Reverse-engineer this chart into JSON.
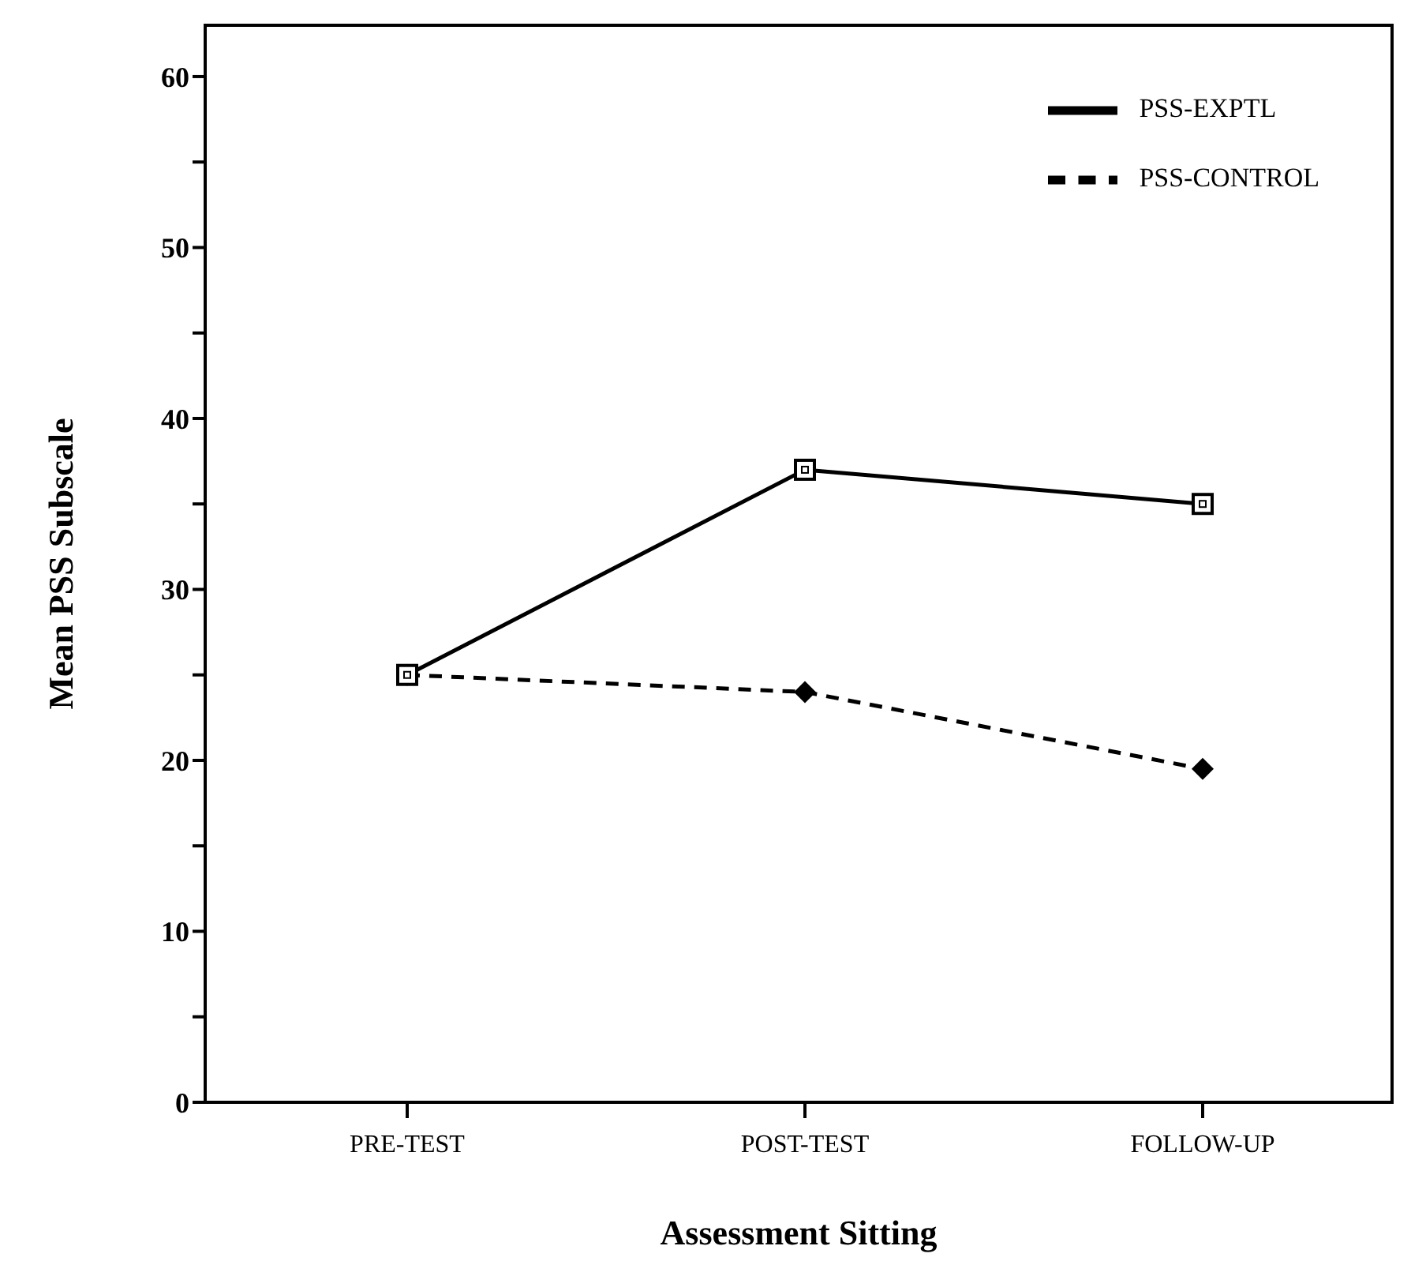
{
  "chart_data": {
    "type": "line",
    "xlabel": "Assessment  Sitting",
    "ylabel": "Mean PSS Subscale",
    "categories": [
      "PRE-TEST",
      "POST-TEST",
      "FOLLOW-UP"
    ],
    "series": [
      {
        "name": "PSS-EXPTL",
        "color": "#000000",
        "values": [
          25,
          37,
          35
        ],
        "marker": "square",
        "line_style": "solid"
      },
      {
        "name": "PSS-CONTROL",
        "color": "#000000",
        "values": [
          25,
          24,
          19.5
        ],
        "marker": "diamond",
        "line_style": "dashed"
      }
    ],
    "ylim": [
      0,
      63
    ],
    "yticks": [
      0,
      {
        "value": 5,
        "label": null
      },
      10,
      {
        "value": 15,
        "label": null
      },
      20,
      {
        "value": 25,
        "label": null
      },
      30,
      {
        "value": 35,
        "label": null
      },
      40,
      {
        "value": 45,
        "label": null
      },
      50,
      {
        "value": 55,
        "label": null
      },
      60
    ],
    "grid": false,
    "legend": "top right"
  }
}
